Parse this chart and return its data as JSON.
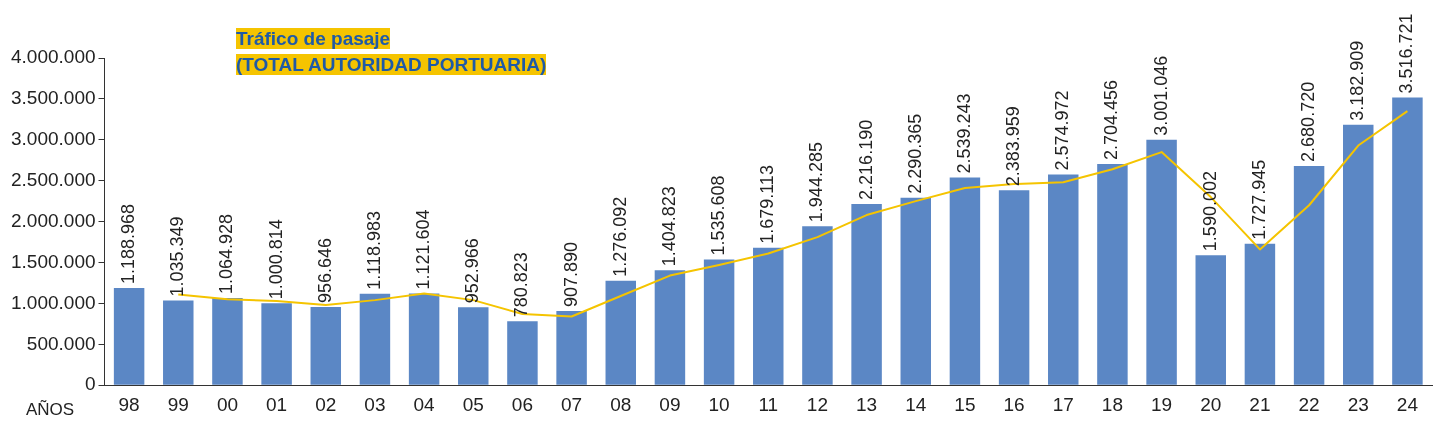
{
  "chart_data": {
    "type": "bar",
    "title": "Tráfico de pasaje",
    "subtitle": "(TOTAL AUTORIDAD PORTUARIA)",
    "xlabel": "AÑOS",
    "categories": [
      "98",
      "99",
      "00",
      "01",
      "02",
      "03",
      "04",
      "05",
      "06",
      "07",
      "08",
      "09",
      "10",
      "11",
      "12",
      "13",
      "14",
      "15",
      "16",
      "17",
      "18",
      "19",
      "20",
      "21",
      "22",
      "23",
      "24"
    ],
    "series": [
      {
        "color": "#5b87c5",
        "values": [
          1188968,
          1035349,
          1064928,
          1000814,
          956646,
          1118983,
          1121604,
          952966,
          780823,
          907890,
          1276092,
          1404823,
          1535608,
          1679113,
          1944285,
          2216190,
          2290365,
          2539243,
          2383959,
          2574972,
          2704456,
          3001046,
          1590002,
          1727945,
          2680720,
          3182909,
          3516721
        ],
        "value_labels": [
          "1.188.968",
          "1.035.349",
          "1.064.928",
          "1.000.814",
          "956.646",
          "1.118.983",
          "1.121.604",
          "952.966",
          "780.823",
          "907.890",
          "1.276.092",
          "1.404.823",
          "1.535.608",
          "1.679.113",
          "1.944.285",
          "2.216.190",
          "2.290.365",
          "2.539.243",
          "2.383.959",
          "2.574.972",
          "2.704.456",
          "3.001.046",
          "1.590.002",
          "1.727.945",
          "2.680.720",
          "3.182.909",
          "3.516.721"
        ]
      },
      {
        "type": "line",
        "color": "#f5c400",
        "values": [
          null,
          1110000,
          1050000,
          1030000,
          980000,
          1040000,
          1120000,
          1040000,
          870000,
          840000,
          1090000,
          1340000,
          1470000,
          1610000,
          1810000,
          2080000,
          2250000,
          2410000,
          2460000,
          2480000,
          2640000,
          2850000,
          2300000,
          1660000,
          2200000,
          2930000,
          3350000
        ]
      }
    ],
    "ylim": [
      0,
      4000000
    ],
    "yticks": [
      0,
      {
        "value": 500000,
        "label": "500.000"
      },
      {
        "value": 1000000,
        "label": "1.000.000"
      },
      {
        "value": 1500000,
        "label": "1.500.000"
      },
      {
        "value": 2000000,
        "label": "2.000.000"
      },
      {
        "value": 2500000,
        "label": "2.500.000"
      },
      {
        "value": 3000000,
        "label": "3.000.000"
      },
      {
        "value": 3500000,
        "label": "3.500.000"
      },
      {
        "value": 4000000,
        "label": "4.000.000"
      }
    ],
    "grid": false,
    "legend": false,
    "marker": "none",
    "line_style": "solid"
  }
}
